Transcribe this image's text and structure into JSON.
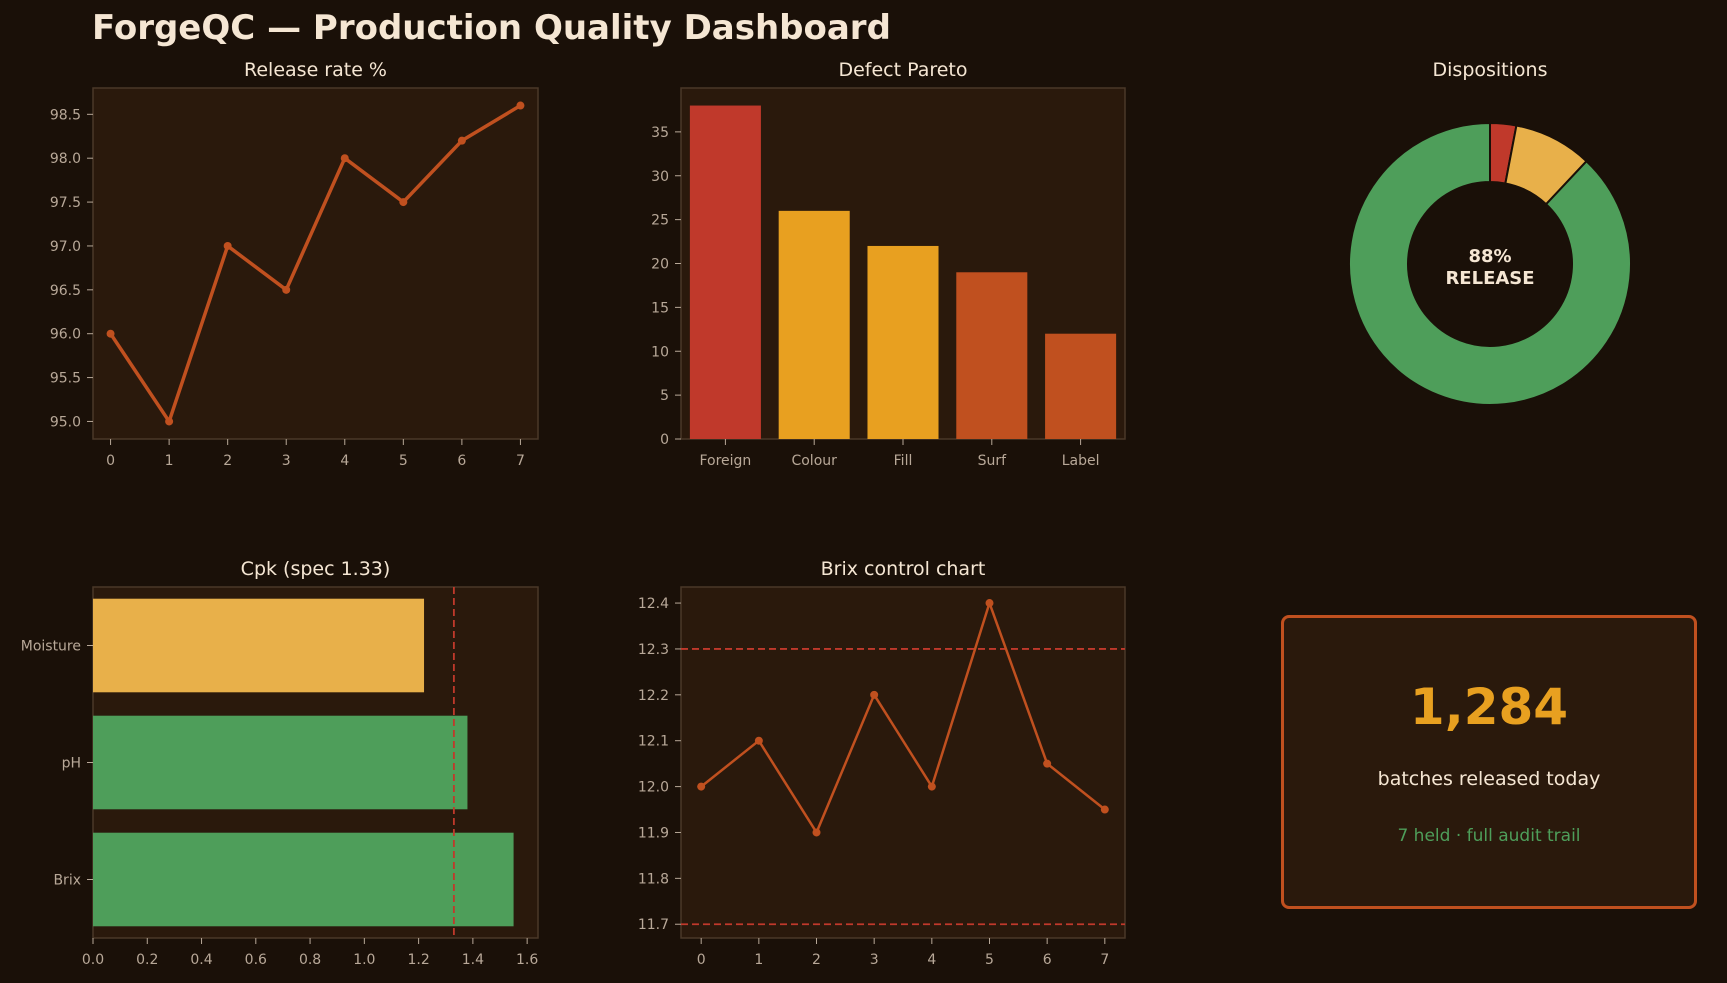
{
  "dashboard": {
    "title": "ForgeQC — Production Quality Dashboard"
  },
  "colors": {
    "background": "#1a1008",
    "panel": "#2a190c",
    "accent": "#c0501f",
    "red": "#c0392b",
    "amber": "#e8a020",
    "yellow": "#e8b04a",
    "green": "#4e9e5a",
    "text": "#f5e6d3",
    "tick": "#b8a898"
  },
  "chart_data": [
    {
      "id": "release_rate",
      "type": "line",
      "title": "Release rate %",
      "x": [
        0,
        1,
        2,
        3,
        4,
        5,
        6,
        7
      ],
      "values": [
        96.0,
        95.0,
        97.0,
        96.5,
        98.0,
        97.5,
        98.2,
        98.6
      ],
      "xlim": [
        -0.3,
        7.3
      ],
      "ylim": [
        94.8,
        98.8
      ],
      "yticks": [
        "95.0",
        "95.5",
        "96.0",
        "96.5",
        "97.0",
        "97.5",
        "98.0",
        "98.5"
      ],
      "xticks": [
        "0",
        "1",
        "2",
        "3",
        "4",
        "5",
        "6",
        "7"
      ],
      "color": "#c0501f",
      "grid": false
    },
    {
      "id": "defect_pareto",
      "type": "bar",
      "title": "Defect Pareto",
      "categories": [
        "Foreign",
        "Colour",
        "Fill",
        "Surf",
        "Label"
      ],
      "values": [
        38,
        26,
        22,
        19,
        12
      ],
      "colors": [
        "#c0392b",
        "#e8a020",
        "#e8a020",
        "#c0501f",
        "#c0501f"
      ],
      "ylim": [
        0,
        40
      ],
      "yticks": [
        "0",
        "5",
        "10",
        "15",
        "20",
        "25",
        "30",
        "35"
      ],
      "grid": false
    },
    {
      "id": "dispositions",
      "type": "pie",
      "title": "Dispositions",
      "slices": [
        {
          "value": 3,
          "color": "#c0392b"
        },
        {
          "value": 9,
          "color": "#e8b04a"
        },
        {
          "value": 88,
          "color": "#4e9e5a"
        }
      ],
      "center_value": "88%",
      "center_label": "RELEASE"
    },
    {
      "id": "cpk",
      "type": "bar",
      "orientation": "horizontal",
      "title": "Cpk (spec 1.33)",
      "categories": [
        "Moisture",
        "pH",
        "Brix"
      ],
      "values": [
        1.22,
        1.38,
        1.55
      ],
      "colors": [
        "#e8b04a",
        "#4e9e5a",
        "#4e9e5a"
      ],
      "spec_line": 1.33,
      "xlim": [
        0,
        1.64
      ],
      "xticks": [
        "0.0",
        "0.2",
        "0.4",
        "0.6",
        "0.8",
        "1.0",
        "1.2",
        "1.4",
        "1.6"
      ],
      "grid": false
    },
    {
      "id": "brix_control",
      "type": "line",
      "title": "Brix control chart",
      "x": [
        0,
        1,
        2,
        3,
        4,
        5,
        6,
        7
      ],
      "values": [
        12.0,
        12.1,
        11.9,
        12.2,
        12.0,
        12.4,
        12.05,
        11.95
      ],
      "control_limits": [
        12.3,
        11.7
      ],
      "xlim": [
        -0.35,
        7.35
      ],
      "ylim": [
        11.67,
        12.435
      ],
      "yticks": [
        "11.7",
        "11.8",
        "11.9",
        "12.0",
        "12.1",
        "12.2",
        "12.3",
        "12.4"
      ],
      "xticks": [
        "0",
        "1",
        "2",
        "3",
        "4",
        "5",
        "6",
        "7"
      ],
      "color": "#c0501f",
      "grid": false
    }
  ],
  "kpi": {
    "value": "1,284",
    "label": "batches released today",
    "sub": "7 held · full audit trail"
  }
}
